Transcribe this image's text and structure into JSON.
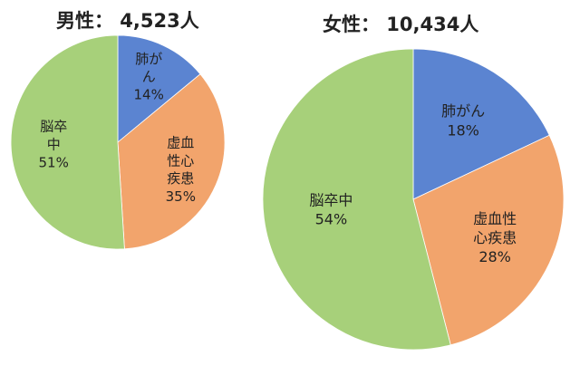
{
  "chart_data": [
    {
      "type": "pie",
      "title": "男性： 4,523人",
      "categories": [
        "肺がん",
        "虚血性心疾患",
        "脳卒中"
      ],
      "values": [
        14,
        35,
        51
      ],
      "value_labels": [
        "14%",
        "35%",
        "51%"
      ],
      "label_lines": [
        [
          "肺が",
          "ん"
        ],
        [
          "虚血",
          "性心",
          "疾患"
        ],
        [
          "脳卒",
          "中"
        ]
      ],
      "colors": [
        "#5b84d1",
        "#f2a46c",
        "#a7d07a"
      ]
    },
    {
      "type": "pie",
      "title": "女性： 10,434人",
      "categories": [
        "肺がん",
        "虚血性心疾患",
        "脳卒中"
      ],
      "values": [
        18,
        28,
        54
      ],
      "value_labels": [
        "18%",
        "28%",
        "54%"
      ],
      "label_lines": [
        [
          "肺がん"
        ],
        [
          "虚血性",
          "心疾患"
        ],
        [
          "脳卒中"
        ]
      ],
      "colors": [
        "#5b84d1",
        "#f2a46c",
        "#a7d07a"
      ]
    }
  ]
}
